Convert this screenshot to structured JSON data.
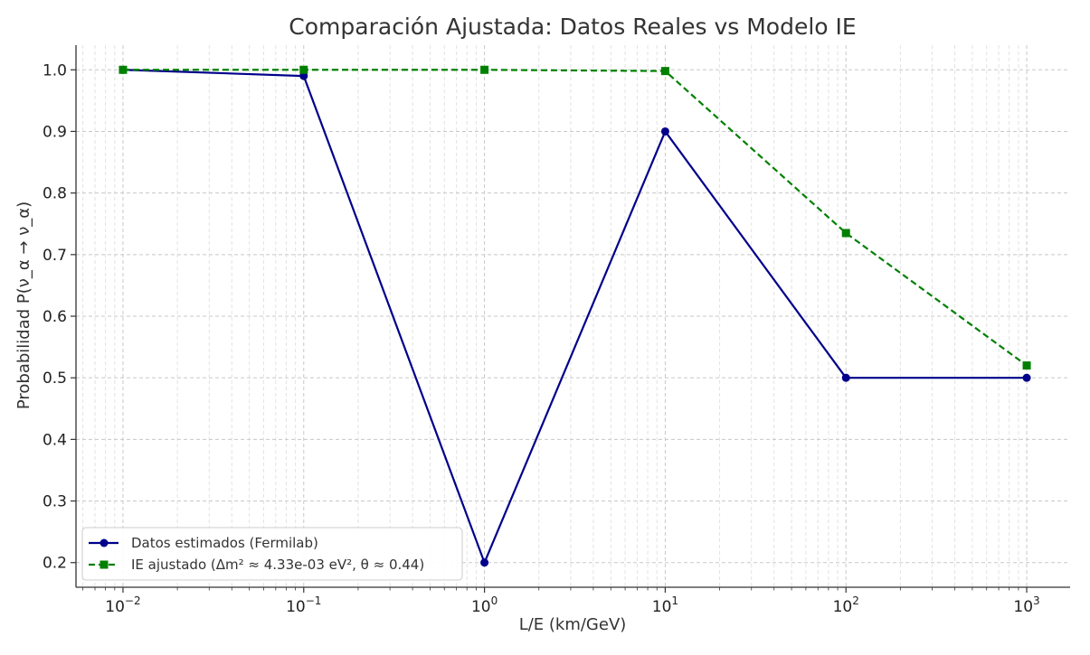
{
  "chart_data": {
    "type": "line",
    "title": "Comparación Ajustada: Datos Reales vs Modelo IE",
    "xlabel": "L/E (km/GeV)",
    "ylabel": "Probabilidad P(ν_α → ν_α)",
    "xscale": "log",
    "x": [
      0.01,
      0.1,
      1,
      10,
      100,
      1000
    ],
    "xticks": [
      {
        "base": "10",
        "exp": "−2"
      },
      {
        "base": "10",
        "exp": "−1"
      },
      {
        "base": "10",
        "exp": "0"
      },
      {
        "base": "10",
        "exp": "1"
      },
      {
        "base": "10",
        "exp": "2"
      },
      {
        "base": "10",
        "exp": "3"
      }
    ],
    "yticks": [
      "0.2",
      "0.3",
      "0.4",
      "0.5",
      "0.6",
      "0.7",
      "0.8",
      "0.9",
      "1.0"
    ],
    "ylim": [
      0.16,
      1.04
    ],
    "grid": true,
    "legend_position": "bottom-left",
    "series": [
      {
        "name": "Datos estimados (Fermilab)",
        "values": [
          1.0,
          0.99,
          0.2,
          0.9,
          0.5,
          0.5
        ],
        "color": "#00008b",
        "marker": "circle",
        "linestyle": "solid"
      },
      {
        "name": "IE ajustado (Δm² ≈ 4.33e-03 eV², θ ≈ 0.44)",
        "values": [
          1.0,
          1.0,
          1.0,
          0.998,
          0.735,
          0.52
        ],
        "color": "#008000",
        "marker": "square",
        "linestyle": "dashed"
      }
    ]
  }
}
